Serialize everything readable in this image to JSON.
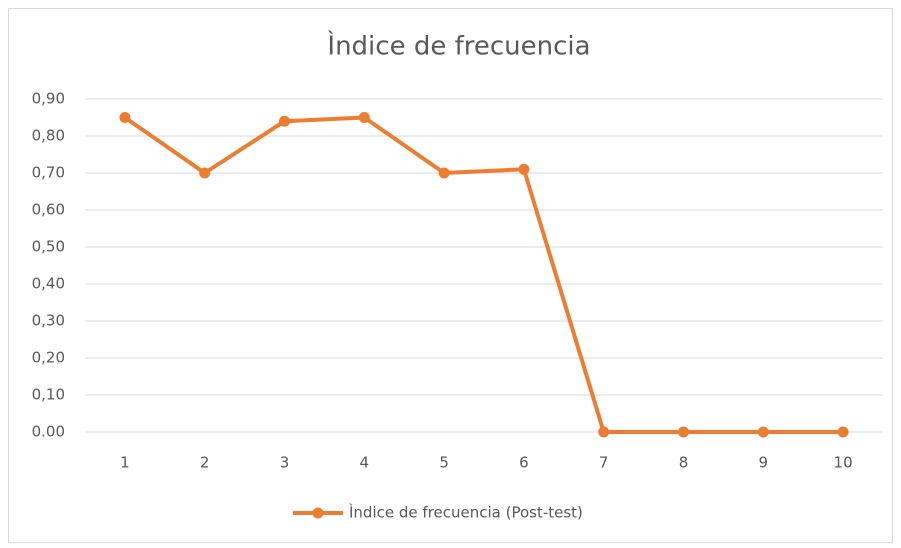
{
  "chart_data": {
    "type": "line",
    "title": "Ìndice de frecuencia",
    "categories": [
      "1",
      "2",
      "3",
      "4",
      "5",
      "6",
      "7",
      "8",
      "9",
      "10"
    ],
    "series": [
      {
        "name": "Ìndice de frecuencia (Post-test)",
        "color": "#ed7d31",
        "values": [
          0.85,
          0.7,
          0.84,
          0.85,
          0.7,
          0.71,
          0,
          0,
          0,
          0
        ]
      }
    ],
    "ylim": [
      0,
      0.9
    ],
    "yticks": [
      {
        "value": 0,
        "label": "0.00"
      },
      {
        "value": 0.1,
        "label": "0,10"
      },
      {
        "value": 0.2,
        "label": "0,20"
      },
      {
        "value": 0.3,
        "label": "0,30"
      },
      {
        "value": 0.4,
        "label": "0,40"
      },
      {
        "value": 0.5,
        "label": "0,50"
      },
      {
        "value": 0.6,
        "label": "0,60"
      },
      {
        "value": 0.7,
        "label": "0,70"
      },
      {
        "value": 0.8,
        "label": "0,80"
      },
      {
        "value": 0.9,
        "label": "0,90"
      }
    ],
    "grid": true,
    "legend": "bottom"
  }
}
